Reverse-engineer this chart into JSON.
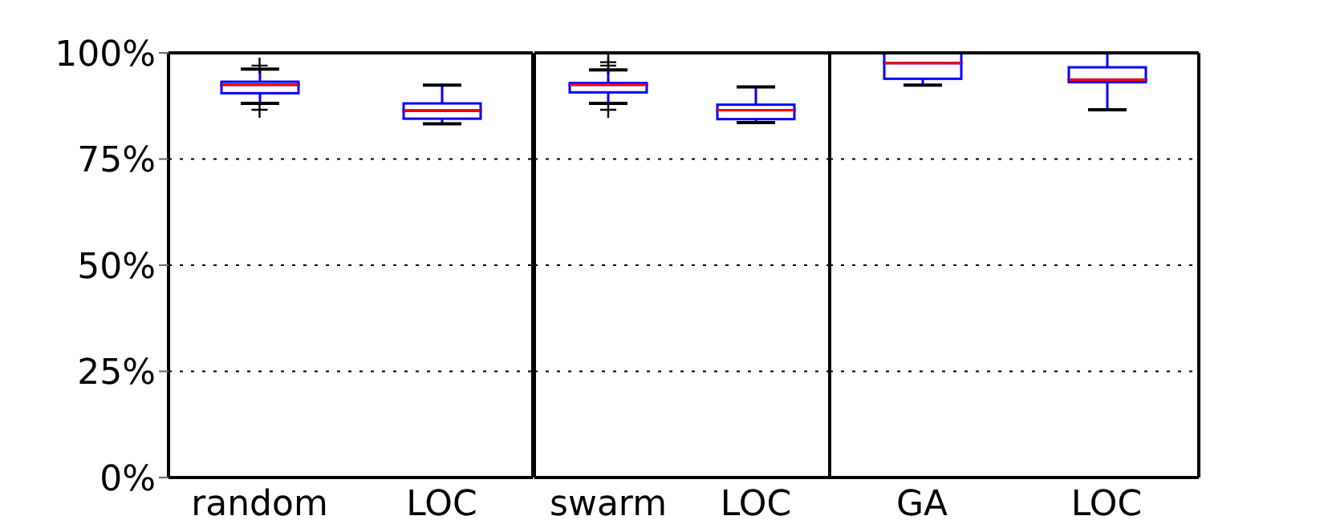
{
  "chart_data": [
    {
      "type": "box",
      "categories": [
        "random",
        "LOC"
      ],
      "ylim": [
        0,
        100
      ],
      "yticks": [
        {
          "value": 0,
          "label": "0%"
        },
        {
          "value": 25,
          "label": "25%"
        },
        {
          "value": 50,
          "label": "50%"
        },
        {
          "value": 75,
          "label": "75%"
        },
        {
          "value": 100,
          "label": "100%"
        }
      ],
      "grid": "y",
      "series": [
        {
          "color": "#0000ff",
          "boxes": [
            {
              "low": 88.1,
              "q1": 90.5,
              "median": 92.5,
              "q3": 93.2,
              "high": 96.2,
              "outliers": [
                97,
                86.6
              ]
            },
            {
              "low": 83.3,
              "q1": 84.5,
              "median": 86.4,
              "q3": 88.1,
              "high": 92.4
            }
          ]
        }
      ]
    },
    {
      "type": "box",
      "categories": [
        "swarm",
        "LOC"
      ],
      "ylim": [
        0,
        100
      ],
      "yticks": [
        0,
        25,
        50,
        75,
        100
      ],
      "grid": "y",
      "tick_labels": "x",
      "series": [
        {
          "color": "#0000ff",
          "boxes": [
            {
              "low": 88.1,
              "q1": 90.7,
              "median": 92.5,
              "q3": 92.9,
              "high": 96,
              "outliers": [
                97,
                97.8,
                86.6
              ]
            },
            {
              "low": 83.6,
              "q1": 84.4,
              "median": 86.5,
              "q3": 87.8,
              "high": 92
            }
          ]
        }
      ]
    },
    {
      "type": "box",
      "categories": [
        "GA",
        "LOC"
      ],
      "ylim": [
        0,
        100
      ],
      "yticks": [
        0,
        25,
        50,
        75,
        100
      ],
      "grid": "y",
      "tick_labels": "x",
      "series": [
        {
          "color": "#0000ff",
          "boxes": [
            {
              "low": 92.4,
              "q1": 93.9,
              "median": 97.6,
              "q3": 100,
              "high": 100
            },
            {
              "low": 86.6,
              "q1": 93.1,
              "median": 93.7,
              "q3": 96.6,
              "high": 100
            }
          ]
        }
      ]
    }
  ]
}
